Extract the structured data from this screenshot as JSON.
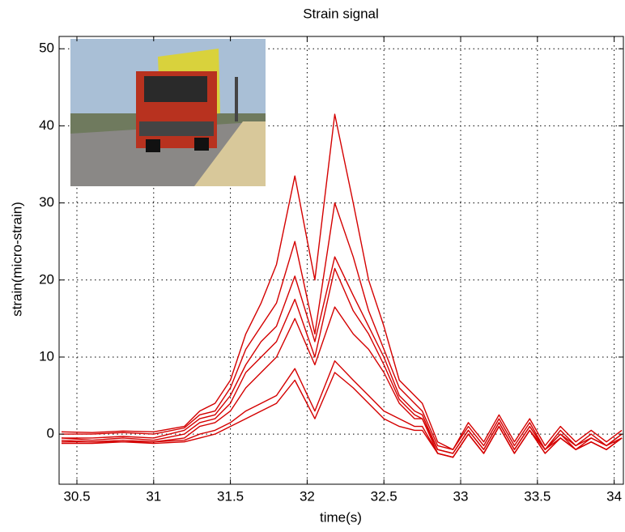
{
  "chart_data": {
    "type": "line",
    "title": "Strain signal",
    "x_label": "time(s)",
    "y_label": "strain(micro-strain)",
    "x": [
      30.4,
      30.6,
      30.8,
      31.0,
      31.2,
      31.3,
      31.4,
      31.5,
      31.6,
      31.7,
      31.8,
      31.92,
      32.05,
      32.18,
      32.3,
      32.4,
      32.5,
      32.6,
      32.7,
      32.75,
      32.85,
      32.95,
      33.05,
      33.15,
      33.25,
      33.35,
      33.45,
      33.55,
      33.65,
      33.75,
      33.85,
      33.95,
      34.05
    ],
    "series": [
      {
        "color": "#d40000",
        "values": [
          0.3,
          0.2,
          0.4,
          0.3,
          1,
          3,
          4,
          7,
          13,
          17,
          22,
          33.5,
          20,
          41.5,
          30,
          20,
          14,
          7,
          5,
          4,
          -1,
          -2,
          1.5,
          -1,
          2.5,
          -1,
          2,
          -1.5,
          1,
          -1,
          0.5,
          -1,
          0.5
        ]
      },
      {
        "color": "#d40000",
        "values": [
          0,
          0,
          0.2,
          0,
          0.8,
          2.5,
          3,
          6,
          11,
          14,
          17,
          25,
          13,
          30,
          23,
          16,
          11,
          6,
          4,
          3,
          -1.5,
          -2,
          1,
          -1.5,
          2,
          -1.5,
          1.5,
          -2,
          0.5,
          -1.5,
          0,
          -1.5,
          0
        ]
      },
      {
        "color": "#d40000",
        "values": [
          -0.5,
          -0.5,
          -0.3,
          -0.5,
          0.5,
          2,
          2.5,
          5,
          9,
          12,
          14,
          20.5,
          12,
          23,
          18,
          14,
          10,
          5,
          3,
          2.5,
          -2,
          -2.5,
          0.5,
          -2,
          1.5,
          -2,
          1,
          -2,
          0,
          -2,
          -0.5,
          -1.5,
          -0.5
        ]
      },
      {
        "color": "#d40000",
        "values": [
          -0.5,
          -0.8,
          -0.5,
          -0.8,
          0,
          1.5,
          2,
          4,
          8,
          10,
          12,
          17.5,
          10,
          21.5,
          16,
          13,
          9,
          4.5,
          2.5,
          2,
          -2,
          -2.5,
          0.5,
          -2,
          1.5,
          -2,
          1,
          -2,
          0,
          -1.5,
          -0.5,
          -1.5,
          0
        ]
      },
      {
        "color": "#d40000",
        "values": [
          -0.8,
          -1,
          -0.8,
          -1,
          -0.5,
          1,
          1.5,
          3,
          6,
          8,
          10,
          15,
          9,
          16.5,
          13,
          11,
          8,
          4,
          2,
          2,
          -2.5,
          -3,
          0,
          -2.5,
          1,
          -2.5,
          0.5,
          -2,
          -0.5,
          -2,
          -1,
          -2,
          -0.5
        ]
      },
      {
        "color": "#d40000",
        "values": [
          -1,
          -1,
          -1,
          -1,
          -0.8,
          0,
          0.5,
          1.5,
          3,
          4,
          5,
          8.5,
          3,
          9.5,
          7,
          5,
          3,
          2,
          1,
          1,
          -2.5,
          -3,
          0,
          -2.5,
          1,
          -2.5,
          0.5,
          -2.5,
          -0.5,
          -2,
          -1,
          -2,
          -0.5
        ]
      },
      {
        "color": "#d40000",
        "values": [
          -1.2,
          -1.2,
          -1,
          -1.2,
          -1,
          -0.5,
          0,
          1,
          2,
          3,
          4,
          7,
          2,
          8,
          6,
          4,
          2,
          1,
          0.5,
          0.5,
          -2.5,
          -3,
          0,
          -2.5,
          1,
          -2.5,
          0.5,
          -2.5,
          -0.5,
          -2,
          -1,
          -2,
          -0.5
        ]
      }
    ],
    "xlim": [
      30.384,
      34.06
    ],
    "xticks": [
      30.5,
      31,
      31.5,
      32,
      32.5,
      33,
      33.5,
      34
    ],
    "ylim": [
      -6.5,
      51.6
    ],
    "yticks": [
      0,
      10,
      20,
      30,
      40,
      50
    ],
    "grid": true
  }
}
